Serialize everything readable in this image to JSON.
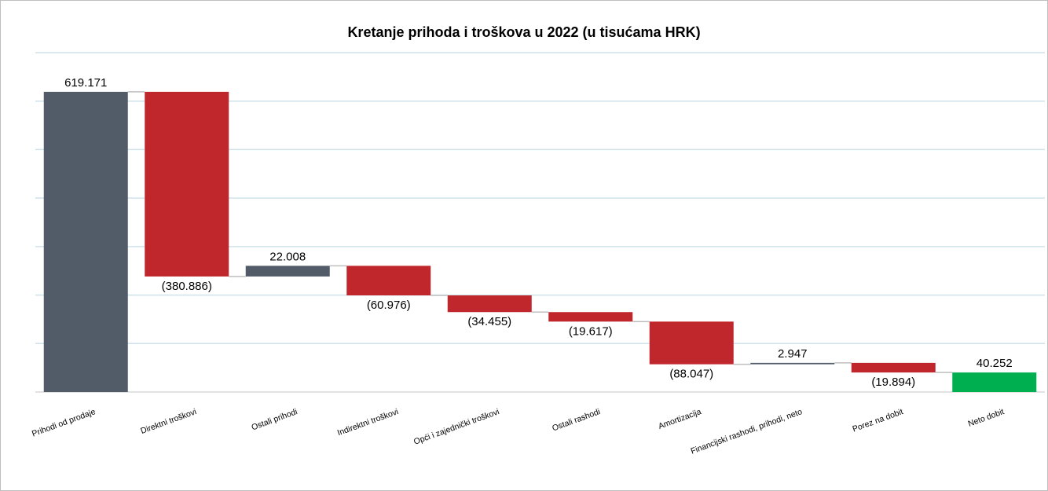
{
  "chart_data": {
    "type": "waterfall",
    "title": "Kretanje prihoda i troškova u 2022 (u tisućama HRK)",
    "categories": [
      "Prihodi od prodaje",
      "Direktni troškovi",
      "Ostali prihodi",
      "Indirektni troškovi",
      "Opći i zajednički troškovi",
      "Ostali rashodi",
      "Amortizacija",
      "Financijski rashodi, prihodi, neto",
      "Porez na dobit",
      "Neto dobit"
    ],
    "values": [
      619171,
      -380886,
      22008,
      -60976,
      -34455,
      -19617,
      -88047,
      2947,
      -19894,
      40252
    ],
    "value_labels": [
      "619.171",
      "(380.886)",
      "22.008",
      "(60.976)",
      "(34.455)",
      "(19.617)",
      "(88.047)",
      "2.947",
      "(19.894)",
      "40.252"
    ],
    "measure": [
      "absolute",
      "relative",
      "relative",
      "relative",
      "relative",
      "relative",
      "relative",
      "relative",
      "relative",
      "total"
    ],
    "colors": [
      "#515c68",
      "#c0272d",
      "#515c68",
      "#c0272d",
      "#c0272d",
      "#c0272d",
      "#c0272d",
      "#515c68",
      "#c0272d",
      "#00b050"
    ],
    "ylim": [
      0,
      700000
    ],
    "yticks": [
      0,
      100000,
      200000,
      300000,
      400000,
      500000,
      600000,
      700000
    ],
    "grid": true,
    "tick_labels": false
  }
}
